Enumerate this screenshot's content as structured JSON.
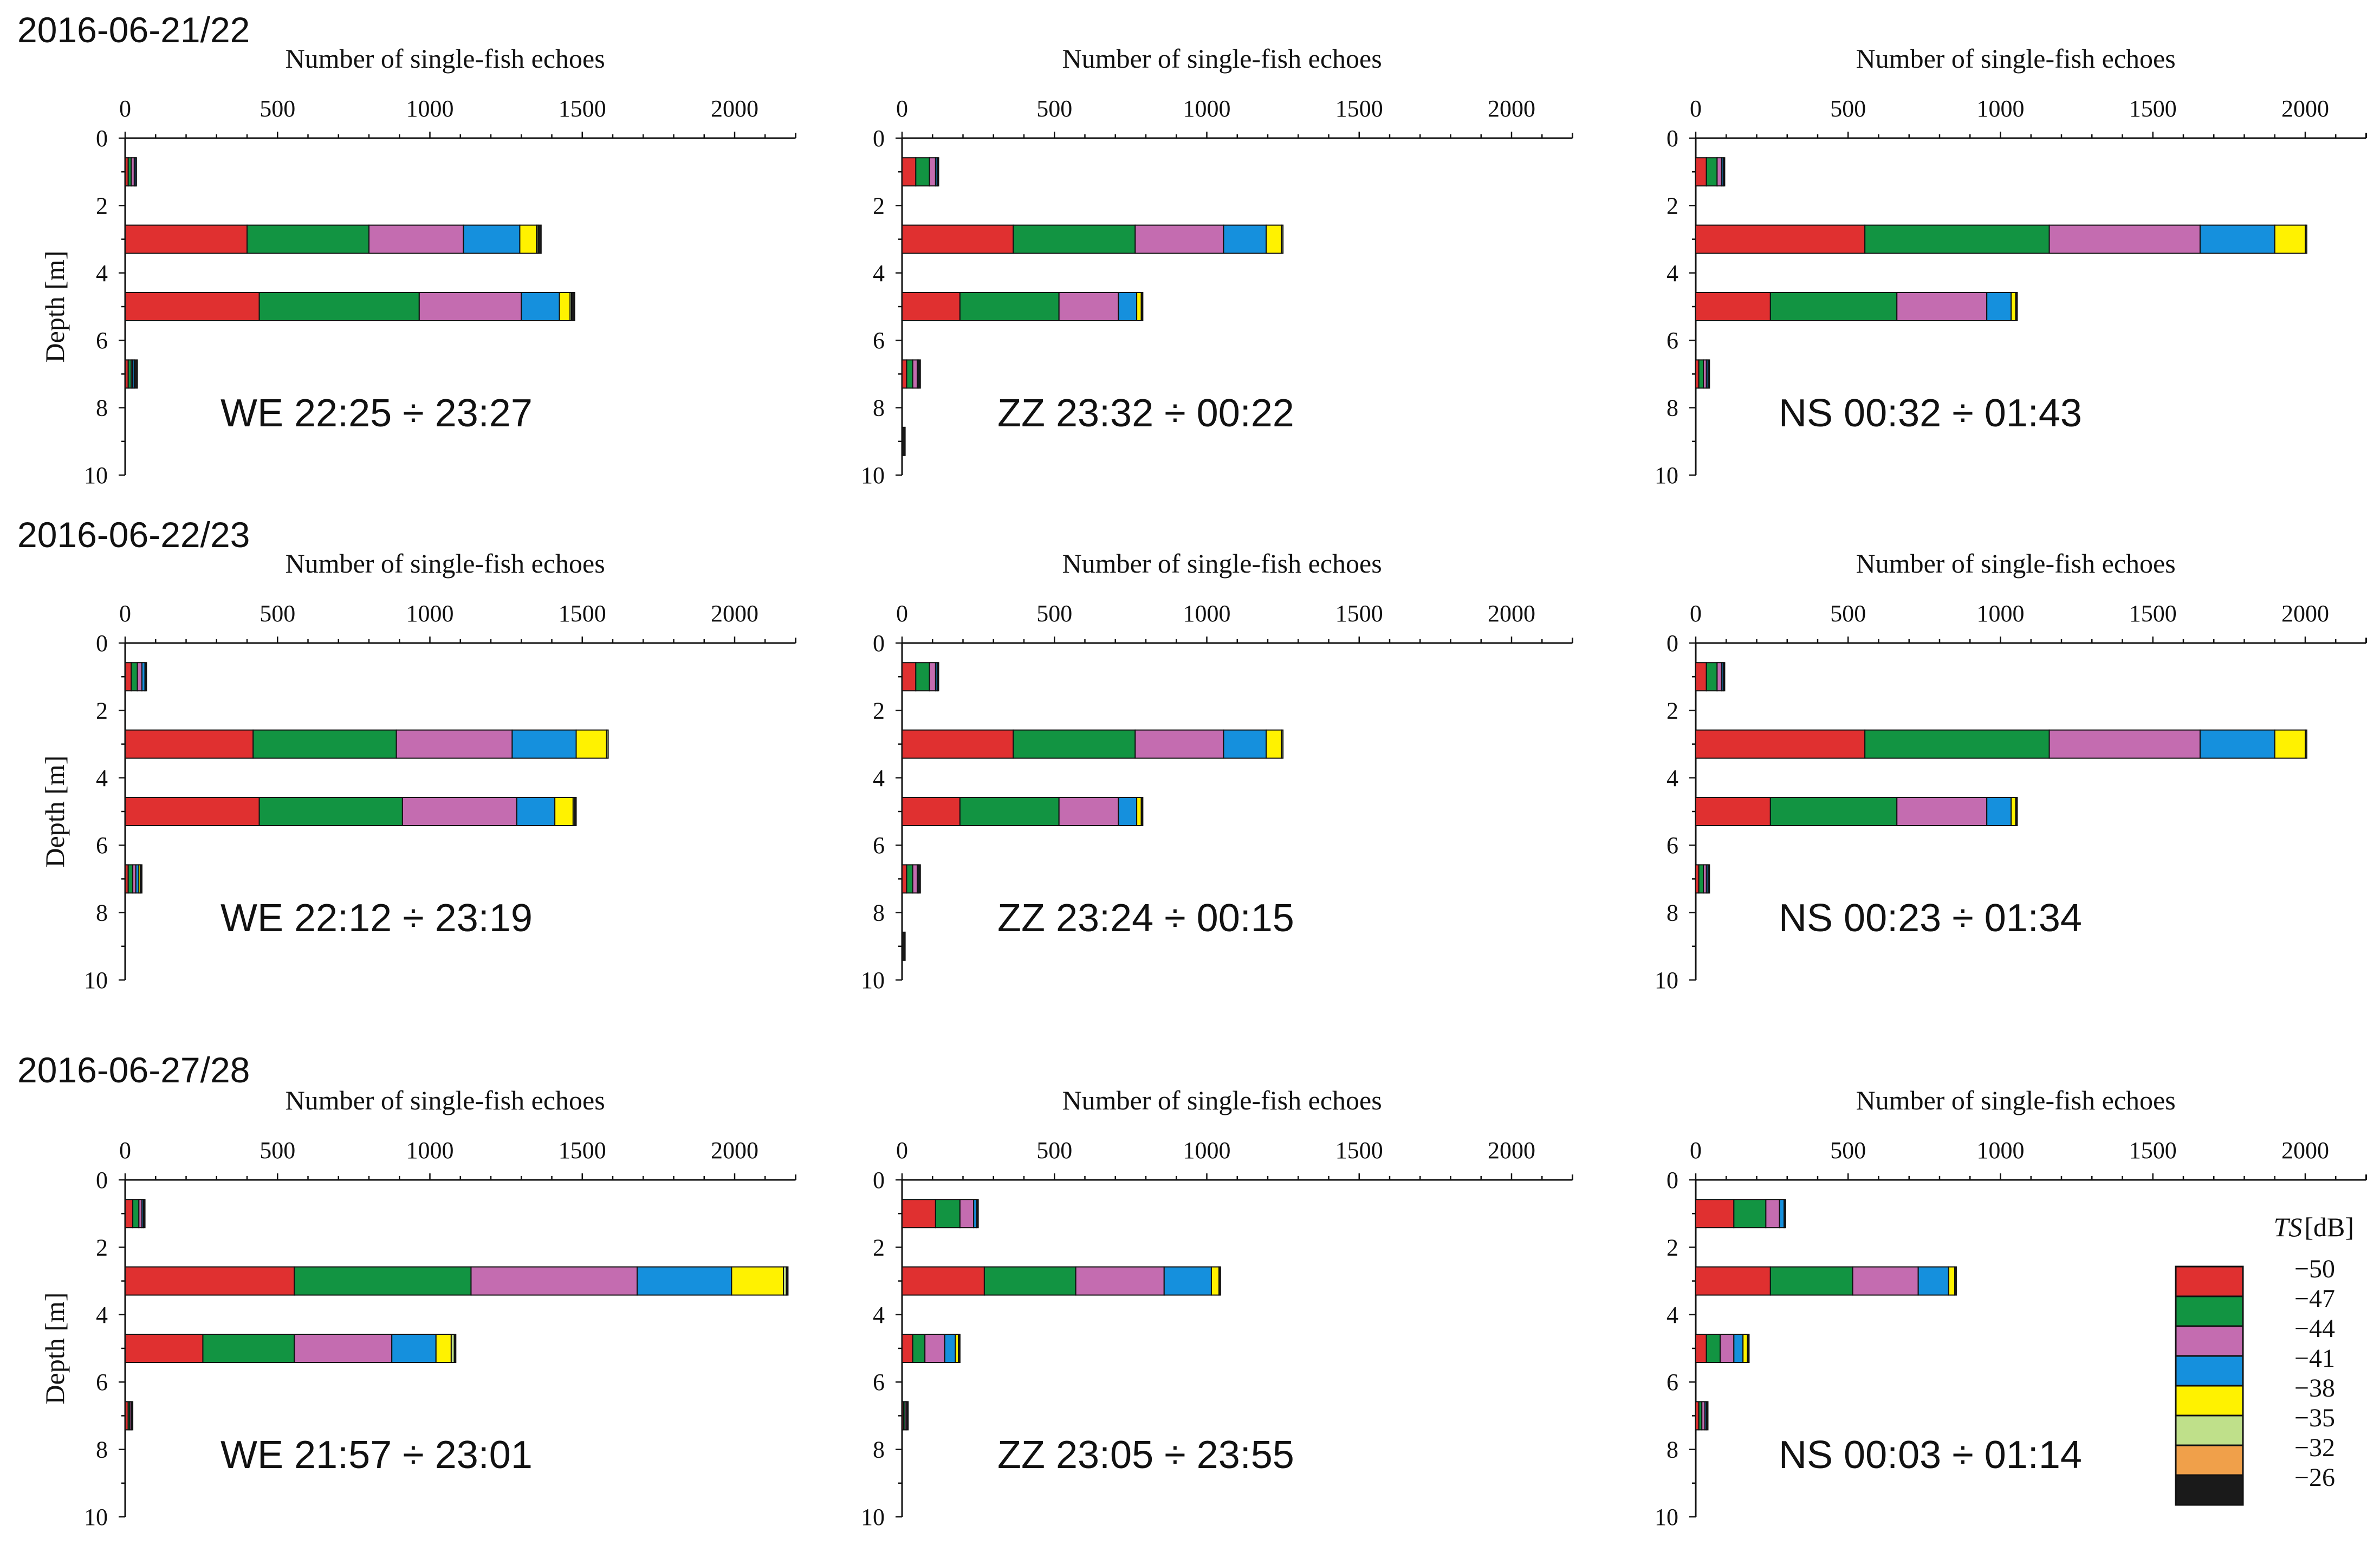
{
  "chart_data": {
    "type": "stacked-horizontal-bar",
    "x_label": "Number of single-fish echoes",
    "y_label": "Depth [m]",
    "xlim": [
      0,
      2200
    ],
    "ylim": [
      0,
      10
    ],
    "x_ticks": [
      0,
      500,
      1000,
      1500,
      2000
    ],
    "y_ticks": [
      0,
      2,
      4,
      6,
      8,
      10
    ],
    "depths": [
      1,
      3,
      5,
      7,
      9
    ],
    "legend": {
      "title_italic": "TS",
      "title_unit": "[dB]",
      "classes": [
        "−50",
        "−47",
        "−44",
        "−41",
        "−38",
        "−35",
        "−32",
        "−26"
      ],
      "colors": [
        "#e03030",
        "#129442",
        "#c46cb0",
        "#1590dd",
        "#fff200",
        "#bfe08a",
        "#f0a04a",
        "#1a1a1a"
      ]
    },
    "rows": [
      {
        "title": "2016-06-21/22",
        "panels": [
          {
            "label": "WE   22:25 ÷ 23:27",
            "bars": [
              [
                10,
                10,
                10,
                5,
                2,
                0,
                0,
                0
              ],
              [
                400,
                400,
                310,
                185,
                55,
                5,
                0,
                10
              ],
              [
                440,
                525,
                335,
                125,
                35,
                5,
                0,
                10
              ],
              [
                10,
                10,
                5,
                5,
                0,
                0,
                0,
                10
              ],
              [
                0,
                0,
                0,
                0,
                0,
                0,
                0,
                0
              ]
            ]
          },
          {
            "label": "ZZ   23:32 ÷ 00:22",
            "bars": [
              [
                45,
                45,
                20,
                5,
                0,
                0,
                0,
                5
              ],
              [
                365,
                400,
                290,
                140,
                50,
                5,
                0,
                0
              ],
              [
                190,
                325,
                195,
                60,
                15,
                0,
                0,
                5
              ],
              [
                15,
                20,
                15,
                5,
                0,
                0,
                0,
                5
              ],
              [
                0,
                0,
                0,
                0,
                0,
                0,
                0,
                10
              ]
            ]
          },
          {
            "label": "NS   00:32 ÷ 01:43",
            "bars": [
              [
                35,
                35,
                15,
                5,
                0,
                0,
                0,
                5
              ],
              [
                555,
                605,
                495,
                245,
                100,
                5,
                0,
                0
              ],
              [
                245,
                415,
                295,
                80,
                15,
                0,
                0,
                5
              ],
              [
                10,
                15,
                10,
                5,
                0,
                0,
                0,
                5
              ],
              [
                0,
                0,
                0,
                0,
                0,
                0,
                0,
                0
              ]
            ]
          }
        ]
      },
      {
        "title": "2016-06-22/23",
        "panels": [
          {
            "label": "WE   22:12 ÷ 23:19",
            "bars": [
              [
                20,
                20,
                15,
                10,
                0,
                0,
                0,
                5
              ],
              [
                420,
                470,
                380,
                210,
                100,
                5,
                0,
                0
              ],
              [
                440,
                470,
                375,
                125,
                60,
                5,
                0,
                5
              ],
              [
                10,
                15,
                10,
                10,
                5,
                0,
                0,
                5
              ],
              [
                0,
                0,
                0,
                0,
                0,
                0,
                0,
                0
              ]
            ]
          },
          {
            "label": "ZZ   23:24 ÷ 00:15",
            "bars": [
              [
                45,
                45,
                20,
                5,
                0,
                0,
                0,
                5
              ],
              [
                365,
                400,
                290,
                140,
                50,
                5,
                0,
                0
              ],
              [
                190,
                325,
                195,
                60,
                15,
                0,
                0,
                5
              ],
              [
                15,
                20,
                15,
                5,
                0,
                0,
                0,
                5
              ],
              [
                0,
                0,
                0,
                0,
                0,
                0,
                0,
                10
              ]
            ]
          },
          {
            "label": "NS   00:23 ÷ 01:34",
            "bars": [
              [
                35,
                35,
                15,
                5,
                0,
                0,
                0,
                5
              ],
              [
                555,
                605,
                495,
                245,
                100,
                5,
                0,
                0
              ],
              [
                245,
                415,
                295,
                80,
                15,
                0,
                0,
                5
              ],
              [
                10,
                15,
                10,
                5,
                0,
                0,
                0,
                5
              ],
              [
                0,
                0,
                0,
                0,
                0,
                0,
                0,
                0
              ]
            ]
          }
        ]
      },
      {
        "title": "2016-06-27/28",
        "panels": [
          {
            "label": "WE   21:57 ÷ 23:01",
            "bars": [
              [
                25,
                20,
                10,
                5,
                0,
                0,
                0,
                5
              ],
              [
                555,
                580,
                545,
                310,
                170,
                10,
                0,
                5
              ],
              [
                255,
                300,
                320,
                145,
                50,
                10,
                0,
                5
              ],
              [
                10,
                5,
                5,
                0,
                0,
                0,
                0,
                5
              ],
              [
                0,
                0,
                0,
                0,
                0,
                0,
                0,
                0
              ]
            ]
          },
          {
            "label": "ZZ   23:05 ÷ 23:55",
            "bars": [
              [
                110,
                80,
                45,
                10,
                0,
                0,
                0,
                5
              ],
              [
                270,
                300,
                290,
                155,
                25,
                0,
                0,
                5
              ],
              [
                35,
                40,
                65,
                35,
                10,
                0,
                0,
                5
              ],
              [
                5,
                5,
                5,
                0,
                0,
                0,
                0,
                5
              ],
              [
                0,
                0,
                0,
                0,
                0,
                0,
                0,
                0
              ]
            ]
          },
          {
            "label": "NS   00:03 ÷ 01:14",
            "bars": [
              [
                125,
                105,
                45,
                15,
                0,
                0,
                0,
                5
              ],
              [
                245,
                270,
                215,
                100,
                20,
                0,
                0,
                5
              ],
              [
                35,
                45,
                45,
                30,
                15,
                0,
                0,
                5
              ],
              [
                10,
                10,
                10,
                5,
                0,
                0,
                0,
                5
              ],
              [
                0,
                0,
                0,
                0,
                0,
                0,
                0,
                0
              ]
            ]
          }
        ]
      }
    ]
  }
}
